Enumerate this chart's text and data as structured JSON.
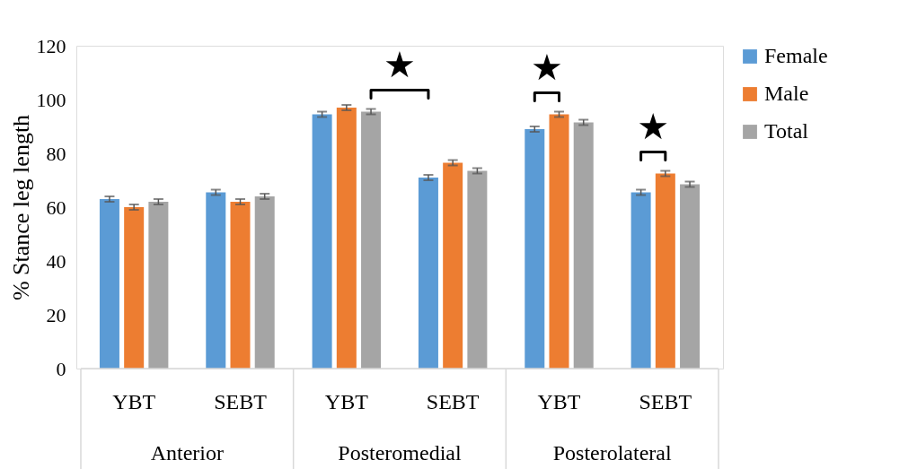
{
  "chart_data": {
    "type": "bar",
    "ylabel": "% Stance leg length",
    "categories": [
      "YBT",
      "SEBT",
      "YBT",
      "SEBT",
      "YBT",
      "SEBT"
    ],
    "series": [
      {
        "name": "Female",
        "color": "#5b9bd5",
        "values": [
          63,
          65.5,
          94.5,
          71,
          89,
          65.5
        ],
        "errors": [
          1,
          1,
          1,
          1,
          1,
          1
        ]
      },
      {
        "name": "Male",
        "color": "#ed7d31",
        "values": [
          60,
          62,
          97,
          76.5,
          94.5,
          72.5
        ],
        "errors": [
          1,
          1,
          1,
          1,
          1,
          1
        ]
      },
      {
        "name": "Total",
        "color": "#a5a5a5",
        "values": [
          62,
          64,
          95.5,
          73.5,
          91.5,
          68.5
        ],
        "errors": [
          1,
          1,
          1,
          1,
          1,
          1
        ]
      }
    ],
    "annotations": [
      "Anterior",
      "Posteromedial",
      "Posterolateral",
      "★",
      "★",
      "★"
    ],
    "ylim": [
      0,
      120
    ],
    "yticks": [
      0,
      20,
      40,
      60,
      80,
      100,
      120
    ],
    "grid": false,
    "legend": "top right"
  }
}
